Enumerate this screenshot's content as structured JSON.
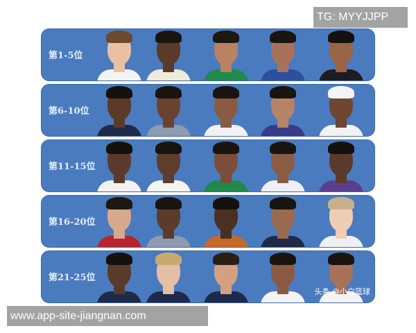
{
  "watermark_top": "TG: MYYJJPP",
  "watermark_bottom": "www.app-site-jiangnan.com",
  "credit": "头条 @小白篮球",
  "panel_color": "#4a7bbf",
  "rows": [
    {
      "label": "第1-5位",
      "players": [
        {
          "skin": "#e8c1a4",
          "hair": "#6b4a2e",
          "jersey": "#f4f4f4"
        },
        {
          "skin": "#5a3a28",
          "hair": "#1a1410",
          "jersey": "#f0ead8"
        },
        {
          "skin": "#b98262",
          "hair": "#1e1813",
          "jersey": "#1f8a4c"
        },
        {
          "skin": "#a8715a",
          "hair": "#1b1510",
          "jersey": "#2d4fa0"
        },
        {
          "skin": "#9a6447",
          "hair": "#15110e",
          "jersey": "#1c1c22"
        }
      ]
    },
    {
      "label": "第6-10位",
      "players": [
        {
          "skin": "#5b3a2a",
          "hair": "#15110e",
          "jersey": "#1f2a4a"
        },
        {
          "skin": "#6a4330",
          "hair": "#1a1410",
          "jersey": "#8e9bb0"
        },
        {
          "skin": "#8a5a42",
          "hair": "#1a1410",
          "jersey": "#f2f2f2"
        },
        {
          "skin": "#b58466",
          "hair": "#1a1410",
          "jersey": "#3a3a8a"
        },
        {
          "skin": "#6e4632",
          "hair": "#f4f4f4",
          "jersey": "#f2f2f2"
        }
      ]
    },
    {
      "label": "第11-15位",
      "players": [
        {
          "skin": "#5a3a2a",
          "hair": "#15110e",
          "jersey": "#f2f2f2"
        },
        {
          "skin": "#5e3d2b",
          "hair": "#1a1410",
          "jersey": "#f4f4f4"
        },
        {
          "skin": "#7a4e38",
          "hair": "#1a1410",
          "jersey": "#1f8a4c"
        },
        {
          "skin": "#8b5c44",
          "hair": "#1a1410",
          "jersey": "#eef0f6"
        },
        {
          "skin": "#5a3a2a",
          "hair": "#15110e",
          "jersey": "#5a3f8f"
        }
      ]
    },
    {
      "label": "第16-20位",
      "players": [
        {
          "skin": "#d6a88c",
          "hair": "#1e1813",
          "jersey": "#b8242e"
        },
        {
          "skin": "#5c3b2a",
          "hair": "#1a1410",
          "jersey": "#8e9bb0"
        },
        {
          "skin": "#4a2f22",
          "hair": "#15110e",
          "jersey": "#c56a2a"
        },
        {
          "skin": "#9a6a50",
          "hair": "#1a1410",
          "jersey": "#1f2a4a"
        },
        {
          "skin": "#efcdb4",
          "hair": "#c9b08a",
          "jersey": "#eef0f6"
        }
      ]
    },
    {
      "label": "第21-25位",
      "players": [
        {
          "skin": "#5a3a28",
          "hair": "#15110e",
          "jersey": "#1f2a4a"
        },
        {
          "skin": "#e6bea3",
          "hair": "#c8aa70",
          "jersey": "#1f2a4a"
        },
        {
          "skin": "#d3a182",
          "hair": "#2a1e15",
          "jersey": "#1f2a4a"
        },
        {
          "skin": "#8a5a42",
          "hair": "#1a1410",
          "jersey": "#f4f4f4"
        },
        {
          "skin": "#a8715a",
          "hair": "#1a1410",
          "jersey": "#f4f4f4"
        }
      ]
    }
  ]
}
